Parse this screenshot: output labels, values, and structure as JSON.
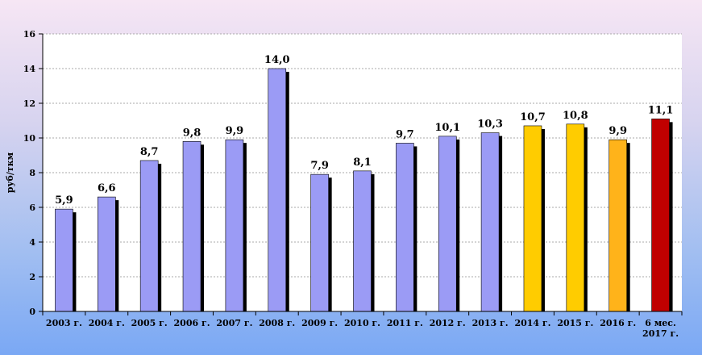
{
  "chart_data": {
    "type": "bar",
    "ylabel": "руб/ткм",
    "ylim": [
      0,
      16
    ],
    "yticks": [
      0,
      2,
      4,
      6,
      8,
      10,
      12,
      14,
      16
    ],
    "grid": true,
    "categories": [
      [
        "2003 г."
      ],
      [
        "2004 г."
      ],
      [
        "2005 г."
      ],
      [
        "2006 г."
      ],
      [
        "2007 г."
      ],
      [
        "2008 г."
      ],
      [
        "2009 г."
      ],
      [
        "2010 г."
      ],
      [
        "2011 г."
      ],
      [
        "2012 г."
      ],
      [
        "2013 г."
      ],
      [
        "2014 г."
      ],
      [
        "2015 г."
      ],
      [
        "2016 г."
      ],
      [
        "6 мес.",
        "2017 г."
      ]
    ],
    "values": [
      5.9,
      6.6,
      8.7,
      9.8,
      9.9,
      14.0,
      7.9,
      8.1,
      9.7,
      10.1,
      10.3,
      10.7,
      10.8,
      9.9,
      11.1
    ],
    "value_labels": [
      "5,9",
      "6,6",
      "8,7",
      "9,8",
      "9,9",
      "14,0",
      "7,9",
      "8,1",
      "9,7",
      "10,1",
      "10,3",
      "10,7",
      "10,8",
      "9,9",
      "11,1"
    ],
    "bar_colors": [
      "#9b9bf5",
      "#9b9bf5",
      "#9b9bf5",
      "#9b9bf5",
      "#9b9bf5",
      "#9b9bf5",
      "#9b9bf5",
      "#9b9bf5",
      "#9b9bf5",
      "#9b9bf5",
      "#9b9bf5",
      "#ffcc00",
      "#ffcc00",
      "#ffb31a",
      "#c00000"
    ]
  }
}
